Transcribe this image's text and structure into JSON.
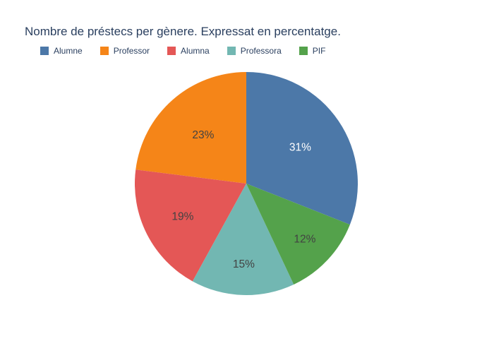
{
  "chart_data": {
    "type": "pie",
    "title": "Nombre de préstecs per gènere. Expressat en percentatge.",
    "legend_position": "top-left horizontal",
    "background_color": "#ffffff",
    "text_color": "#2a3f5f",
    "total": 100,
    "slices": [
      {
        "label": "Alumne",
        "value": 31,
        "pct_label": "31%",
        "color": "#4c78a8",
        "label_color": "#ffffff"
      },
      {
        "label": "Professor",
        "value": 23,
        "pct_label": "23%",
        "color": "#f58518",
        "label_color": "#424242"
      },
      {
        "label": "Alumna",
        "value": 19,
        "pct_label": "19%",
        "color": "#e45756",
        "label_color": "#424242"
      },
      {
        "label": "Professora",
        "value": 15,
        "pct_label": "15%",
        "color": "#72b7b2",
        "label_color": "#424242"
      },
      {
        "label": "PIF",
        "value": 12,
        "pct_label": "12%",
        "color": "#54a24b",
        "label_color": "#424242"
      }
    ]
  }
}
